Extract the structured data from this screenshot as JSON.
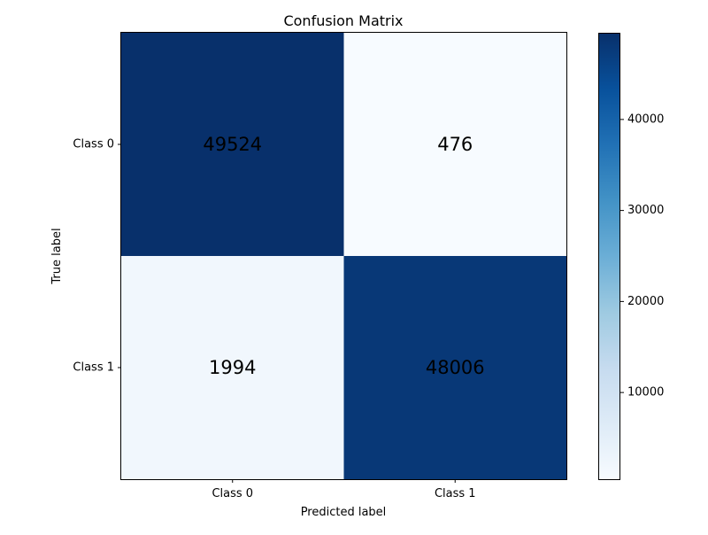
{
  "chart_data": {
    "type": "heatmap",
    "title": "Confusion Matrix",
    "xlabel": "Predicted label",
    "ylabel": "True label",
    "x_categories": [
      "Class 0",
      "Class 1"
    ],
    "y_categories": [
      "Class 0",
      "Class 1"
    ],
    "values": [
      [
        49524,
        476
      ],
      [
        1994,
        48006
      ]
    ],
    "colormap": "Blues",
    "color_range": [
      476,
      49524
    ],
    "colorbar_ticks": [
      10000,
      20000,
      30000,
      40000
    ],
    "colorbar_tick_labels": [
      "10000",
      "20000",
      "30000",
      "40000"
    ],
    "colorbar_placement": "right",
    "grid": false
  }
}
